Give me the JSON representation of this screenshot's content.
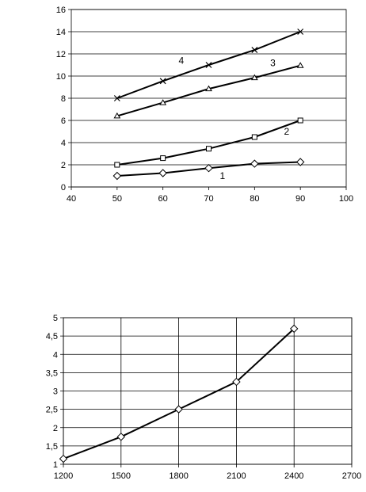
{
  "chart_data": [
    {
      "type": "line",
      "xlim": [
        40,
        100
      ],
      "ylim": [
        0,
        16
      ],
      "x_ticks": [
        "40",
        "50",
        "60",
        "70",
        "80",
        "90",
        "100"
      ],
      "y_ticks": [
        "0",
        "2",
        "4",
        "6",
        "8",
        "10",
        "12",
        "14",
        "16"
      ],
      "grid": "horizontal",
      "x": [
        50,
        60,
        70,
        80,
        90
      ],
      "series": [
        {
          "name": "1",
          "marker": "diamond",
          "values": [
            1.0,
            1.25,
            1.7,
            2.1,
            2.25
          ]
        },
        {
          "name": "2",
          "marker": "square",
          "values": [
            2.0,
            2.6,
            3.45,
            4.5,
            6.0
          ]
        },
        {
          "name": "3",
          "marker": "triangle",
          "values": [
            6.4,
            7.6,
            8.85,
            9.85,
            10.95
          ]
        },
        {
          "name": "4",
          "marker": "x",
          "values": [
            8.0,
            9.55,
            11.0,
            12.35,
            14.0
          ]
        }
      ],
      "xlabel": "",
      "ylabel": "",
      "title": ""
    },
    {
      "type": "line",
      "xlim": [
        1200,
        2700
      ],
      "ylim": [
        1,
        5
      ],
      "x_ticks": [
        "1200",
        "1500",
        "1800",
        "2100",
        "2400",
        "2700"
      ],
      "y_ticks": [
        "1",
        "1,5",
        "2",
        "2,5",
        "3",
        "3,5",
        "4",
        "4,5",
        "5"
      ],
      "grid": "both",
      "x": [
        1200,
        1500,
        1800,
        2100,
        2400
      ],
      "series": [
        {
          "marker": "diamond",
          "values": [
            1.15,
            1.75,
            2.5,
            3.25,
            4.7
          ]
        }
      ],
      "xlabel": "",
      "ylabel": "",
      "title": ""
    }
  ]
}
